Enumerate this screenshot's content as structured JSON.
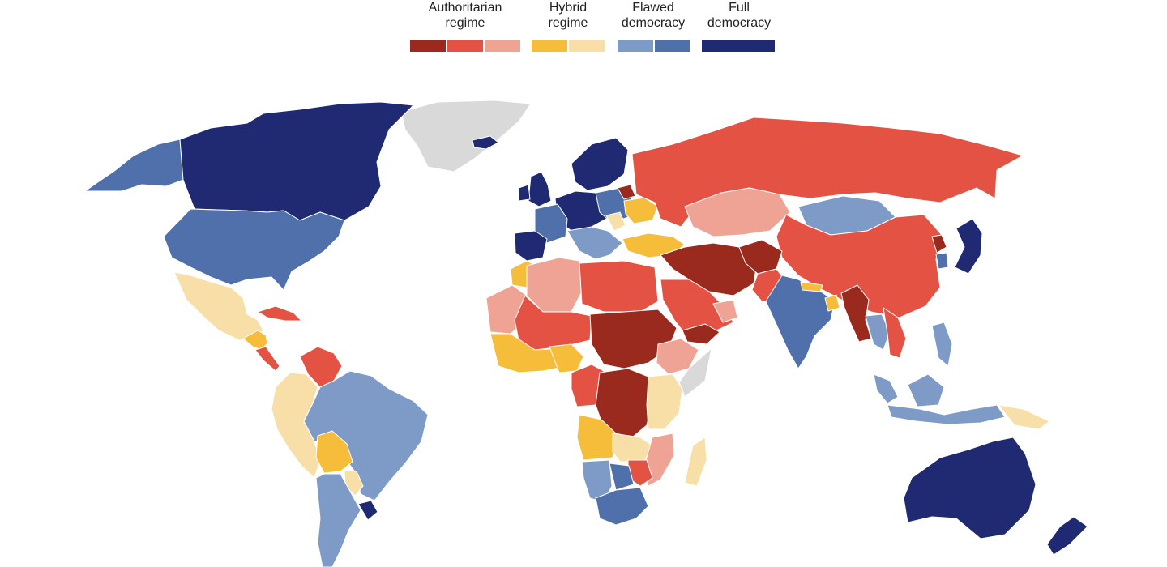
{
  "legend": {
    "groups": [
      {
        "label": "Authoritarian\nregime",
        "colors": [
          "#9b2a1e",
          "#e35243",
          "#eea395"
        ]
      },
      {
        "label": "Hybrid\nregime",
        "colors": [
          "#f5bd3a",
          "#f8dfa8"
        ]
      },
      {
        "label": "Flawed\ndemocracy",
        "colors": [
          "#7e9ac6",
          "#4f70aa"
        ]
      },
      {
        "label": "Full\ndemocracy",
        "colors": [
          "#1f2a73"
        ]
      }
    ]
  },
  "palette": {
    "authoritarian_dark": "#9b2a1e",
    "authoritarian_mid": "#e35243",
    "authoritarian_light": "#eea395",
    "hybrid_dark": "#f5bd3a",
    "hybrid_light": "#f8dfa8",
    "flawed_light": "#7e9ac6",
    "flawed_dark": "#4f70aa",
    "full": "#1f2a73",
    "no_data": "#d9d9d9"
  }
}
